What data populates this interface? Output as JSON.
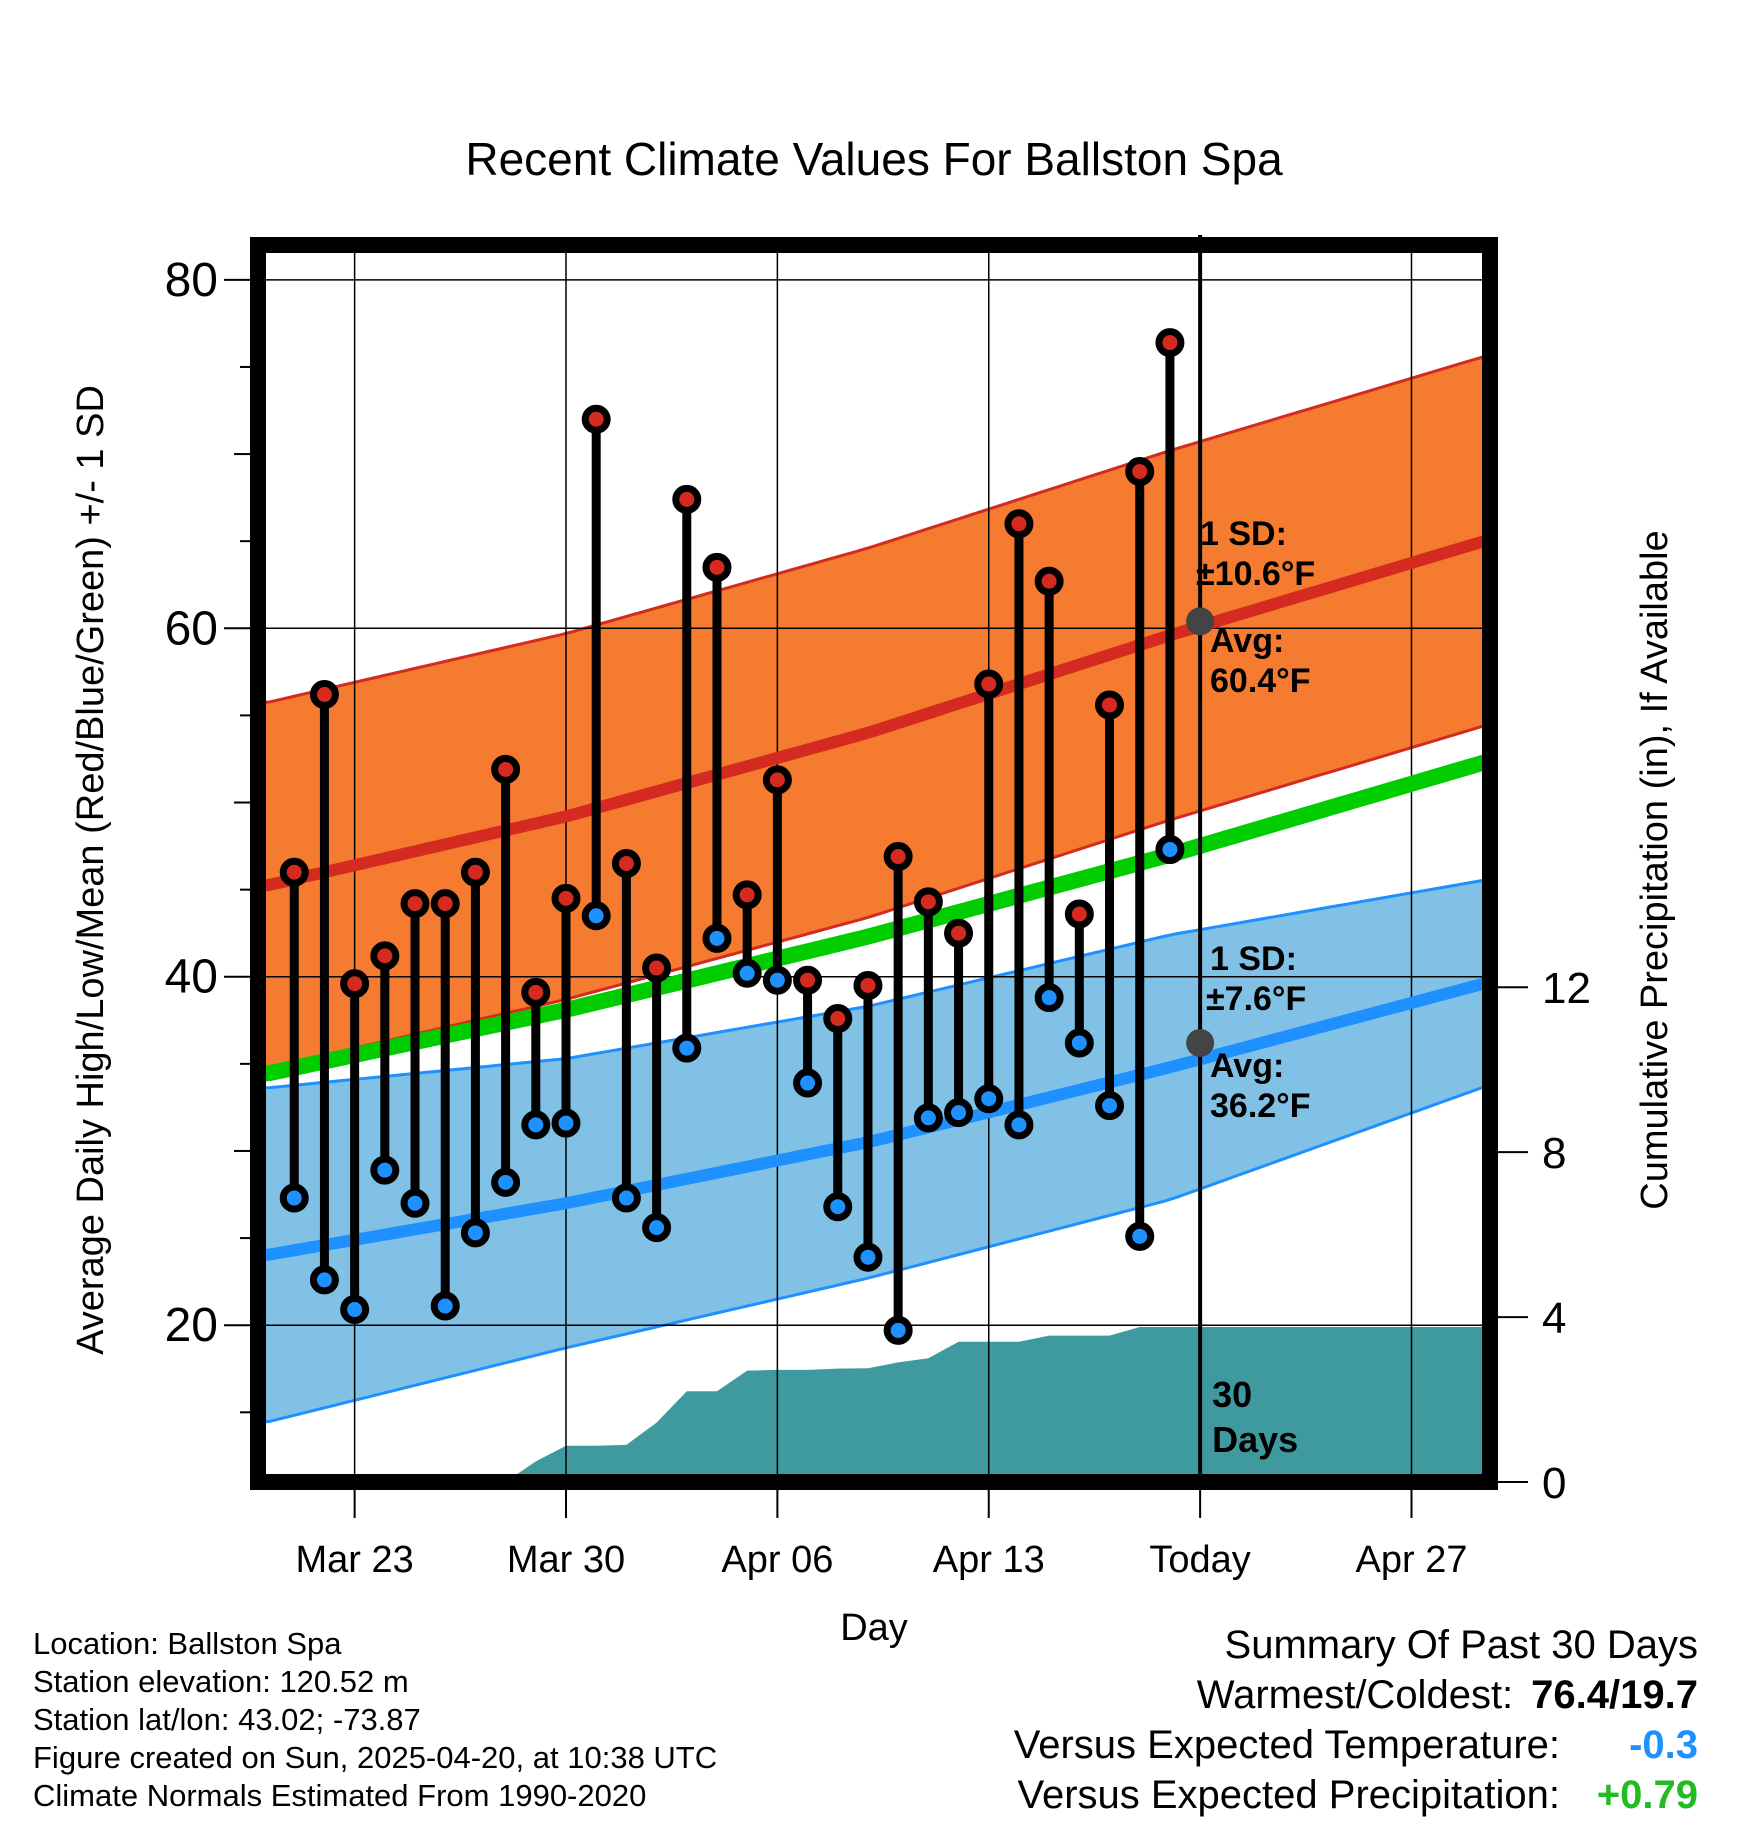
{
  "chart_data": {
    "type": "line",
    "title": "Recent Climate Values For Ballston Spa",
    "xlabel": "Day",
    "ylabel": "Average Daily High/Low/Mean (Red/Blue/Green) +/- 1 SD",
    "y2label": "Cumulative Precipitation (in), If Available",
    "ylim": [
      11,
      82
    ],
    "y_ticks": [
      20,
      40,
      60,
      80
    ],
    "y2lim": [
      0,
      30
    ],
    "y2_ticks": [
      0,
      4,
      8,
      12
    ],
    "x_ticks": [
      {
        "day": 22,
        "label": "Mar 23"
      },
      {
        "day": 29,
        "label": "Mar 30"
      },
      {
        "day": 36,
        "label": "Apr 06"
      },
      {
        "day": 43,
        "label": "Apr 13"
      },
      {
        "day": 50,
        "label": "Today"
      },
      {
        "day": 57,
        "label": "Apr 27"
      }
    ],
    "xlim": [
      18.8,
      59.6
    ],
    "grid": true,
    "colors": {
      "high_band": "#f47b2f",
      "high_line": "#d42a20",
      "low_band": "#82c1e6",
      "low_line": "#1e90ff",
      "mean_line": "#00cc00",
      "precip": "#3f9aa0",
      "summary_temp": "#1e90ff",
      "summary_precip": "#22bb22"
    },
    "normals": {
      "days": [
        19,
        29,
        39,
        49,
        59.6
      ],
      "high_mean": [
        45.2,
        49.2,
        54.0,
        59.6,
        65.1
      ],
      "high_sd": [
        10.5,
        10.5,
        10.6,
        10.6,
        10.6
      ],
      "low_mean": [
        24.0,
        27.0,
        30.5,
        34.8,
        39.7
      ],
      "low_sd": [
        9.6,
        8.3,
        7.8,
        7.6,
        5.9
      ],
      "mean": [
        34.4,
        38.1,
        42.3,
        47.0,
        52.4
      ]
    },
    "series": [
      {
        "name": "High",
        "x": [
          20,
          21,
          22,
          23,
          24,
          25,
          26,
          27,
          28,
          29,
          30,
          31,
          32,
          33,
          34,
          35,
          36,
          37,
          38,
          39,
          40,
          41,
          42,
          43,
          44,
          45,
          46,
          47,
          48,
          49
        ],
        "values": [
          46.0,
          56.2,
          39.6,
          41.2,
          44.2,
          44.2,
          46.0,
          51.9,
          39.1,
          44.5,
          72.0,
          46.5,
          40.5,
          67.4,
          63.5,
          44.7,
          51.3,
          39.8,
          37.6,
          39.5,
          46.9,
          44.3,
          42.5,
          56.8,
          66.0,
          62.7,
          43.6,
          55.6,
          69.0,
          76.4
        ]
      },
      {
        "name": "Low",
        "x": [
          20,
          21,
          22,
          23,
          24,
          25,
          26,
          27,
          28,
          29,
          30,
          31,
          32,
          33,
          34,
          35,
          36,
          37,
          38,
          39,
          40,
          41,
          42,
          43,
          44,
          45,
          46,
          47,
          48,
          49
        ],
        "values": [
          27.3,
          22.6,
          20.9,
          28.9,
          27.0,
          21.1,
          25.3,
          28.2,
          31.5,
          31.6,
          43.5,
          27.3,
          25.6,
          35.9,
          42.2,
          40.2,
          39.8,
          33.9,
          26.8,
          23.9,
          19.7,
          31.9,
          32.2,
          33.0,
          31.5,
          38.8,
          36.2,
          32.6,
          25.1,
          47.3
        ]
      },
      {
        "name": "Cumulative Precipitation",
        "axis": "y2",
        "x": [
          27,
          28,
          29,
          30,
          31,
          32,
          33,
          34,
          35,
          36,
          37,
          38,
          39,
          40,
          41,
          42,
          43,
          44,
          45,
          46,
          47,
          48,
          49,
          50,
          59.6
        ],
        "values": [
          0.0,
          0.5,
          0.88,
          0.88,
          0.9,
          1.44,
          2.2,
          2.2,
          2.7,
          2.72,
          2.72,
          2.75,
          2.76,
          2.9,
          3.0,
          3.4,
          3.4,
          3.4,
          3.55,
          3.55,
          3.55,
          3.76,
          3.76,
          3.76,
          3.76
        ]
      }
    ],
    "today": {
      "day": 50,
      "label": "30 Days",
      "high_annotation": {
        "sd": "1 SD:",
        "sd_value": "±10.6°F",
        "avg": "Avg:",
        "avg_value": "60.4°F",
        "value": 60.4
      },
      "low_annotation": {
        "sd": "1 SD:",
        "sd_value": "±7.6°F",
        "avg": "Avg:",
        "avg_value": "36.2°F",
        "value": 36.2
      }
    }
  },
  "meta": {
    "location": "Location: Ballston Spa",
    "elevation": "Station elevation: 120.52 m",
    "latlon": "Station lat/lon: 43.02; -73.87",
    "created": "Figure created on Sun, 2025-04-20, at 10:38 UTC",
    "normals_period": "Climate Normals Estimated From 1990-2020"
  },
  "summary": {
    "title": "Summary Of Past 30 Days",
    "warm_cold_label": "Warmest/Coldest:",
    "warm_cold_value": "76.4/19.7",
    "temp_label": "Versus Expected Temperature:",
    "temp_value": "-0.3",
    "precip_label": "Versus Expected Precipitation:",
    "precip_value": "+0.79"
  }
}
